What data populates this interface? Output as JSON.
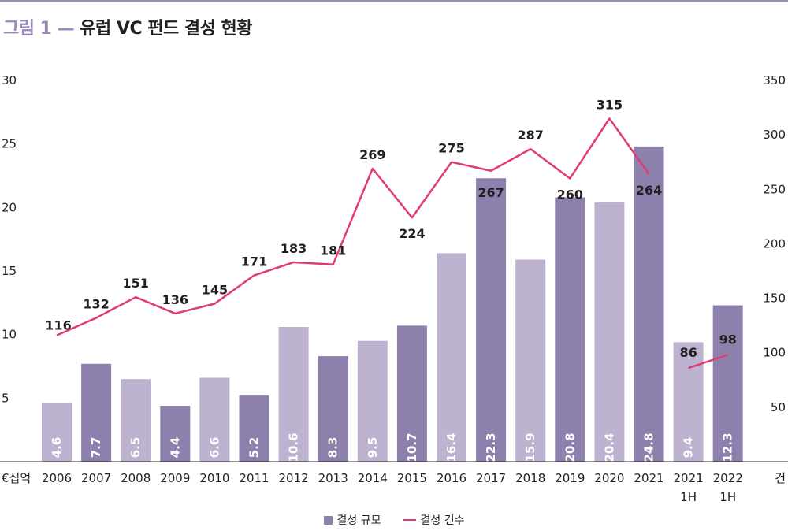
{
  "title": {
    "figure_label": "그림 1 —",
    "text": "유럽 VC 펀드 결성 현황"
  },
  "legend": {
    "bar_label": "결성 규모",
    "line_label": "결성 건수"
  },
  "axes": {
    "left_unit": "€십억",
    "right_unit": "건"
  },
  "colors": {
    "bar_dark": "#8d80ad",
    "bar_light": "#bdb3d0",
    "line": "#e23b6f",
    "title_accent": "#9b89bd"
  },
  "chart_data": {
    "type": "bar",
    "categories": [
      "2006",
      "2007",
      "2008",
      "2009",
      "2010",
      "2011",
      "2012",
      "2013",
      "2014",
      "2015",
      "2016",
      "2017",
      "2018",
      "2019",
      "2020",
      "2021",
      "2021\n1H",
      "2022\n1H"
    ],
    "series": [
      {
        "name": "결성 규모",
        "type": "bar",
        "axis": "left",
        "values": [
          4.6,
          7.7,
          6.5,
          4.4,
          6.6,
          5.2,
          10.6,
          8.3,
          9.5,
          10.7,
          16.4,
          22.3,
          15.9,
          20.8,
          20.4,
          24.8,
          9.4,
          12.3
        ],
        "shade": [
          "light",
          "dark",
          "light",
          "dark",
          "light",
          "dark",
          "light",
          "dark",
          "light",
          "dark",
          "light",
          "dark",
          "light",
          "dark",
          "light",
          "dark",
          "light",
          "dark"
        ]
      },
      {
        "name": "결성 건수",
        "type": "line",
        "axis": "right",
        "values": [
          116,
          132,
          151,
          136,
          145,
          171,
          183,
          181,
          269,
          224,
          275,
          267,
          287,
          260,
          315,
          264,
          86,
          98
        ],
        "segments": [
          [
            0,
            15
          ],
          [
            16,
            17
          ]
        ]
      }
    ],
    "left_axis": {
      "ylim": [
        0,
        30
      ],
      "ticks": [
        5,
        10,
        15,
        20,
        25,
        30
      ]
    },
    "right_axis": {
      "ylim": [
        0,
        350
      ],
      "ticks": [
        50,
        100,
        150,
        200,
        250,
        300,
        350
      ]
    },
    "legend_position": "bottom-center",
    "grid": false
  }
}
